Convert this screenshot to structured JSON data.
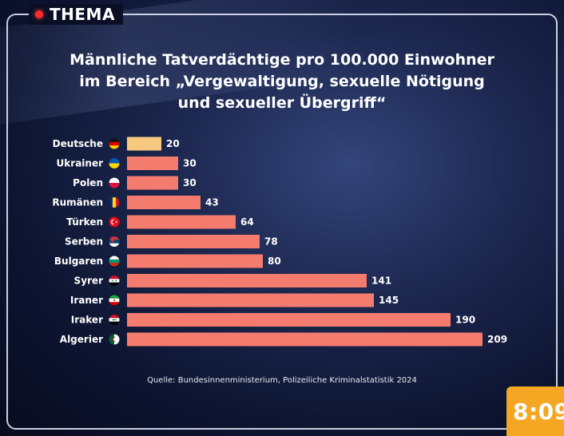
{
  "header": {
    "badge": "THEMA"
  },
  "title_lines": [
    "Männliche Tatverdächtige pro 100.000 Einwohner",
    "im Bereich „Vergewaltigung, sexuelle Nötigung",
    "und sexueller Übergriff“"
  ],
  "source": "Quelle: Bundesinnenministerium, Polizeiliche Kriminalstatistik 2024",
  "clock": "8:09",
  "colors": {
    "highlight": "#f7c97e",
    "bar": "#f47c6e",
    "dot": "#ff2a2a",
    "clock_bg": "#f5a623"
  },
  "chart_data": {
    "type": "bar",
    "orientation": "horizontal",
    "title": "Männliche Tatverdächtige pro 100.000 Einwohner im Bereich „Vergewaltigung, sexuelle Nötigung und sexueller Übergriff“",
    "categories": [
      "Deutsche",
      "Ukrainer",
      "Polen",
      "Rumänen",
      "Türken",
      "Serben",
      "Bulgaren",
      "Syrer",
      "Iraner",
      "Iraker",
      "Algerier"
    ],
    "values": [
      20,
      30,
      30,
      43,
      64,
      78,
      80,
      141,
      145,
      190,
      209
    ],
    "flags": [
      "flag-germany-icon",
      "flag-ukraine-icon",
      "flag-poland-icon",
      "flag-romania-icon",
      "flag-turkey-icon",
      "flag-serbia-icon",
      "flag-bulgaria-icon",
      "flag-syria-icon",
      "flag-iran-icon",
      "flag-iraq-icon",
      "flag-algeria-icon"
    ],
    "highlighted_category": "Deutsche",
    "xlim": [
      0,
      209
    ],
    "xlabel": "",
    "ylabel": ""
  }
}
